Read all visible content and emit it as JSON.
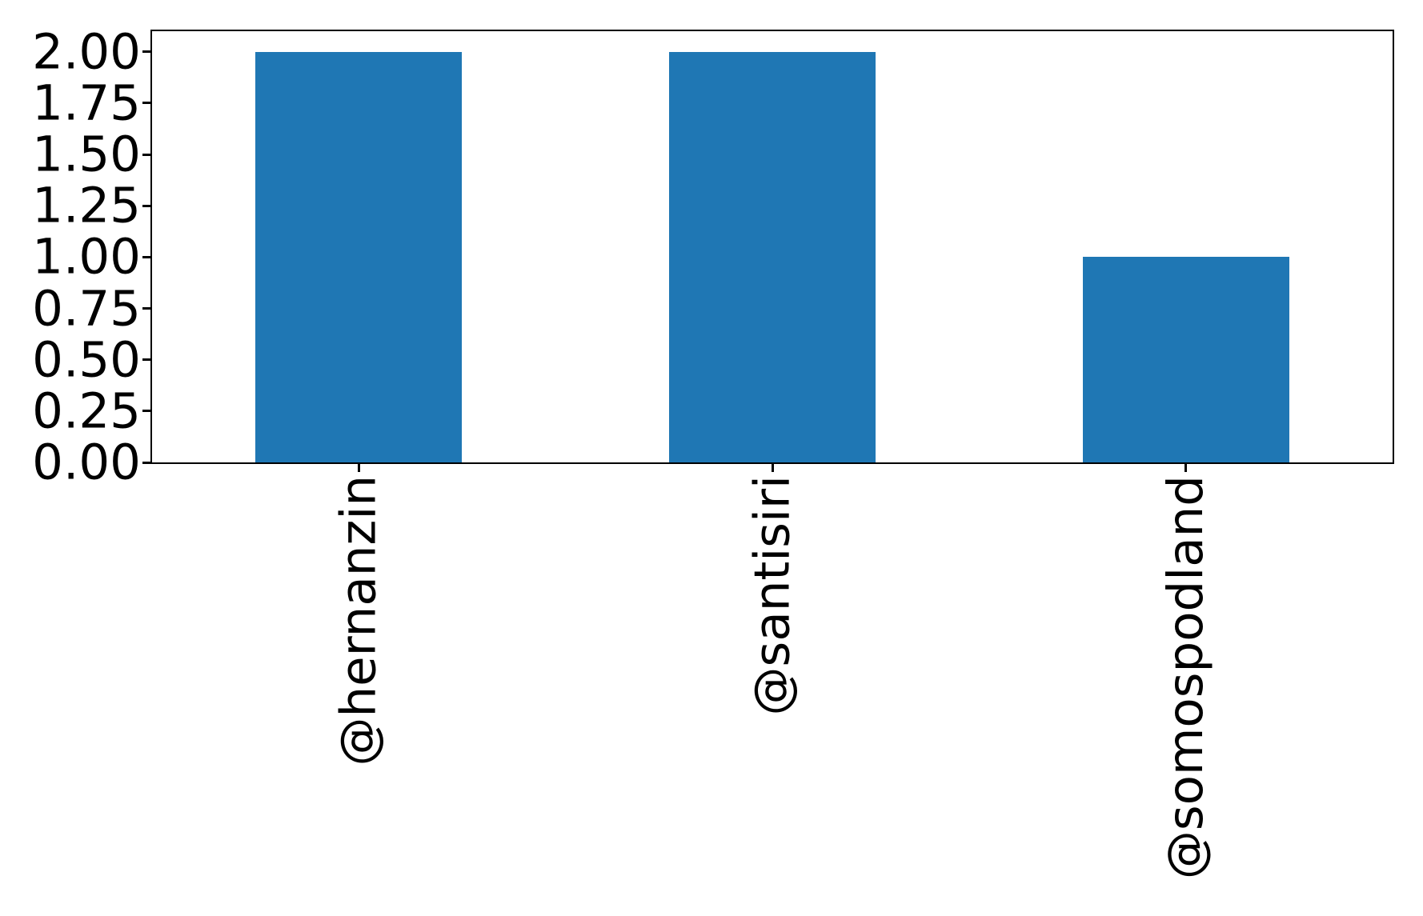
{
  "chart_data": {
    "type": "bar",
    "categories": [
      "@hernanzin",
      "@santisiri",
      "@somospodland"
    ],
    "values": [
      2,
      2,
      1
    ],
    "title": "",
    "xlabel": "",
    "ylabel": "",
    "ylim": [
      0,
      2.1
    ],
    "yticks": [
      0,
      0.25,
      0.5,
      0.75,
      1,
      1.25,
      1.5,
      1.75,
      2
    ],
    "ytick_labels": [
      "0.00",
      "0.25",
      "0.50",
      "0.75",
      "1.00",
      "1.25",
      "1.50",
      "1.75",
      "2.00"
    ],
    "xtick_rotation_deg": 90,
    "bar_color": "#1f77b4",
    "bar_width_fraction": 0.5,
    "axis_color": "#000000",
    "background_color": "#ffffff",
    "grid": false,
    "legend_position": "none"
  }
}
